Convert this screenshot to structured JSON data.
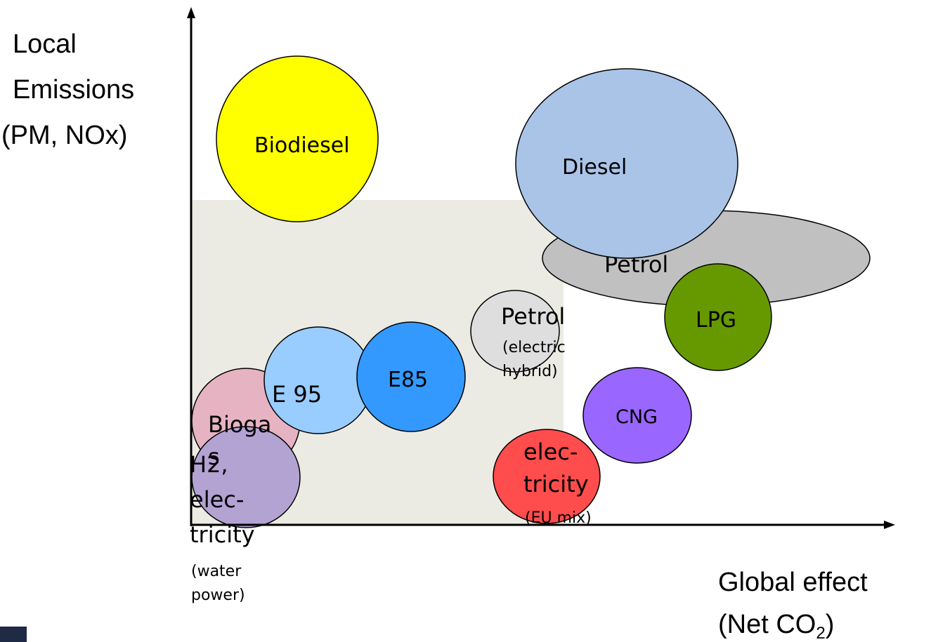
{
  "y_axis_label": [
    "Local",
    "Emissions",
    "(PM, NOx)"
  ],
  "x_axis_label": {
    "line1": "Global effect",
    "line2_start": "(Net CO",
    "subscript": "2",
    "line2_end": ")"
  },
  "nodes": [
    {
      "label": [
        "Petrol"
      ]
    },
    {
      "label": [
        "Biodiesel"
      ]
    },
    {
      "label": [
        "Diesel"
      ]
    },
    {
      "label": [
        "LPG"
      ]
    },
    {
      "label": [
        "Petrol"
      ],
      "note": [
        "(electric",
        "hybrid)"
      ]
    },
    {
      "label": [
        "CNG"
      ]
    },
    {
      "label": [
        "elec-",
        "tricity"
      ],
      "note": [
        "(EU mix)"
      ]
    },
    {
      "label": [
        "Bioga",
        "s"
      ]
    },
    {
      "label": [
        "E 95"
      ]
    },
    {
      "label": [
        "E85"
      ]
    },
    {
      "label": [
        "H2,",
        "elec-",
        "tricity"
      ],
      "note": [
        "(water",
        "power)"
      ]
    }
  ]
}
